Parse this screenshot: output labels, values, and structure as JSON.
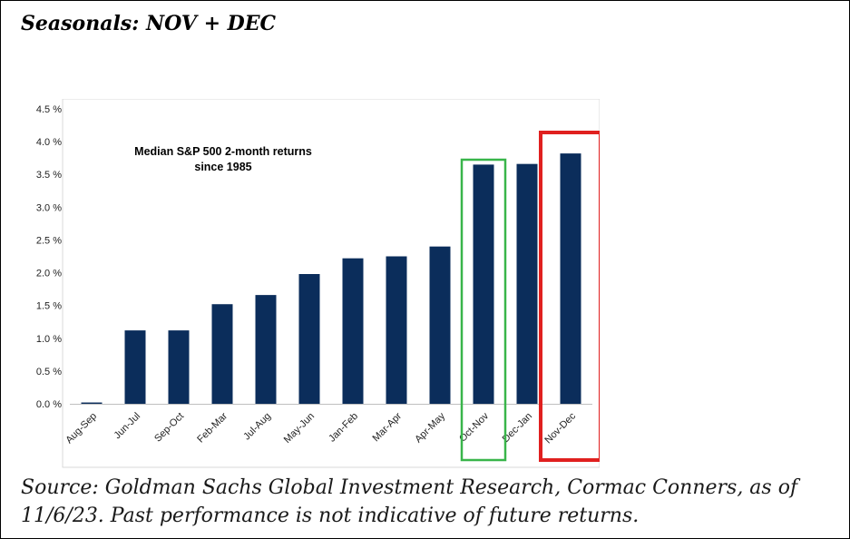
{
  "page": {
    "title": "Seasonals: NOV + DEC",
    "source_line1": "Source: Goldman Sachs Global Investment Research, Cormac Conners,  as of",
    "source_line2": "11/6/23. Past performance is not indicative of future returns."
  },
  "chart_data": {
    "type": "bar",
    "annotation_line1": "Median S&P 500 2-month returns",
    "annotation_line2": "since 1985",
    "categories": [
      "Aug-Sep",
      "Jun-Jul",
      "Sep-Oct",
      "Feb-Mar",
      "Jul-Aug",
      "May-Jun",
      "Jan-Feb",
      "Mar-Apr",
      "Apr-May",
      "Oct-Nov",
      "Dec-Jan",
      "Nov-Dec"
    ],
    "values": [
      0.02,
      1.12,
      1.12,
      1.52,
      1.66,
      1.98,
      2.22,
      2.25,
      2.4,
      3.65,
      3.66,
      3.82
    ],
    "ylim": [
      0,
      4.5
    ],
    "yticks": [
      "0.0 %",
      "0.5 %",
      "1.0 %",
      "1.5 %",
      "2.0 %",
      "2.5 %",
      "3.0 %",
      "3.5 %",
      "4.0 %",
      "4.5 %"
    ],
    "grid": false,
    "bar_color": "#0b2d5b",
    "highlights": [
      {
        "category": "Oct-Nov",
        "color": "#39b54a"
      },
      {
        "category": "Nov-Dec",
        "color": "#e0201f"
      }
    ]
  }
}
